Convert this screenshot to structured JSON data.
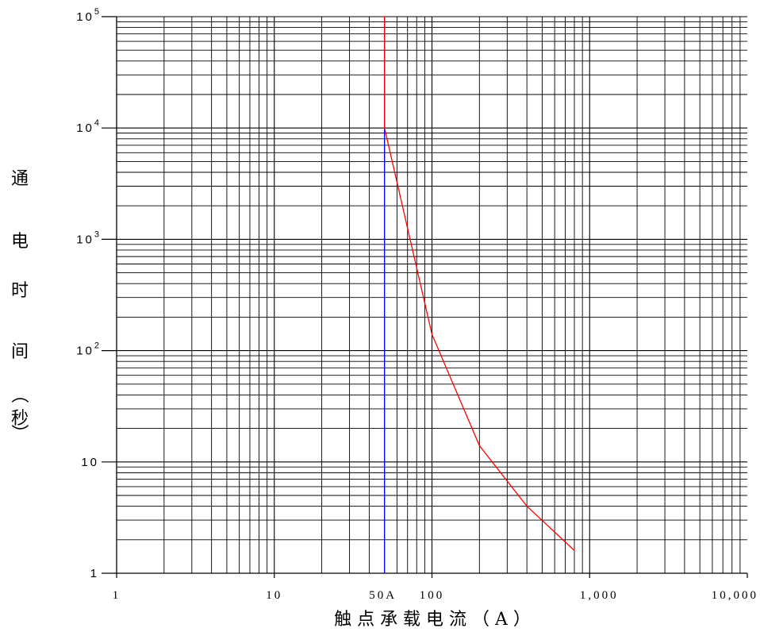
{
  "chart_data": {
    "type": "line",
    "title": "",
    "xlabel": "触 点 承 载 电 流 （ A ）",
    "ylabel_chars": [
      "通",
      "电",
      "时",
      "间",
      "（",
      "秒",
      "）"
    ],
    "x_scale": "log",
    "y_scale": "log",
    "xlim": [
      1,
      10000
    ],
    "ylim": [
      1,
      100000
    ],
    "grid": true,
    "x_ticks": [
      {
        "value": 1,
        "label": "1"
      },
      {
        "value": 10,
        "label": "10"
      },
      {
        "value": 100,
        "label": "100"
      },
      {
        "value": 1000,
        "label": "1,000"
      },
      {
        "value": 10000,
        "label": "10,000"
      }
    ],
    "x_annotation": {
      "value": 50,
      "label": "50A"
    },
    "y_ticks": [
      {
        "value": 1,
        "base": "1",
        "exp": ""
      },
      {
        "value": 10,
        "base": "10",
        "exp": ""
      },
      {
        "value": 100,
        "base": "10",
        "exp": "2"
      },
      {
        "value": 1000,
        "base": "10",
        "exp": "3"
      },
      {
        "value": 10000,
        "base": "10",
        "exp": "4"
      },
      {
        "value": 100000,
        "base": "10",
        "exp": "5"
      }
    ],
    "vertical_line": {
      "x": 50,
      "color": "#0000ff"
    },
    "series": [
      {
        "color": "#ff0000",
        "x": [
          50,
          50,
          100,
          200,
          400,
          800
        ],
        "y": [
          100000,
          10000,
          140,
          14,
          4,
          1.6
        ]
      }
    ]
  }
}
